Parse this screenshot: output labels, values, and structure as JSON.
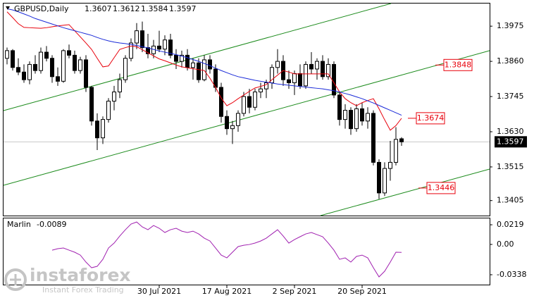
{
  "chart_data": [
    {
      "type": "candlestick",
      "title": "GBPUSD,Daily",
      "categories": [
        null,
        null,
        null,
        null,
        null,
        null,
        null,
        null,
        null,
        null,
        null,
        null,
        null,
        null,
        null,
        null,
        null,
        null,
        null,
        null,
        null,
        null,
        null,
        null,
        null,
        null,
        null,
        "30 Jul 2021",
        null,
        null,
        null,
        null,
        null,
        null,
        null,
        null,
        null,
        null,
        null,
        "17 Aug 2021",
        null,
        null,
        null,
        null,
        null,
        null,
        null,
        null,
        null,
        null,
        null,
        "2 Sep 2021",
        null,
        null,
        null,
        null,
        null,
        null,
        null,
        null,
        null,
        null,
        null,
        "20 Sep 2021",
        null,
        null,
        null,
        null,
        null,
        null,
        null
      ],
      "open": [
        1.387,
        1.3895,
        1.384,
        1.3825,
        1.38,
        1.385,
        1.383,
        1.389,
        1.387,
        1.381,
        1.3795,
        1.3895,
        1.388,
        1.383,
        1.3865,
        1.3775,
        1.3665,
        1.361,
        1.367,
        1.373,
        1.376,
        1.38,
        1.387,
        1.392,
        1.396,
        1.3905,
        1.3885,
        1.391,
        1.39,
        1.393,
        1.388,
        1.386,
        1.388,
        1.384,
        1.3855,
        1.38,
        1.3865,
        1.3835,
        1.3775,
        1.368,
        1.364,
        1.365,
        1.369,
        1.3745,
        1.371,
        1.376,
        1.377,
        1.379,
        1.384,
        1.386,
        1.38,
        1.379,
        1.382,
        1.378,
        1.385,
        1.3835,
        1.386,
        1.381,
        1.385,
        1.375,
        1.367,
        1.37,
        1.364,
        1.3705,
        1.3665,
        1.369,
        1.353,
        1.343,
        1.351,
        1.353,
        1.3607
      ],
      "high": [
        1.3905,
        1.39,
        1.387,
        1.385,
        1.386,
        1.388,
        1.3905,
        1.391,
        1.388,
        1.384,
        1.39,
        1.3915,
        1.3895,
        1.3875,
        1.388,
        1.378,
        1.369,
        1.368,
        1.374,
        1.378,
        1.382,
        1.388,
        1.3935,
        1.3985,
        1.399,
        1.395,
        1.393,
        1.396,
        1.3945,
        1.395,
        1.39,
        1.3895,
        1.39,
        1.387,
        1.387,
        1.388,
        1.388,
        1.385,
        1.379,
        1.37,
        1.3665,
        1.37,
        1.376,
        1.377,
        1.377,
        1.379,
        1.38,
        1.385,
        1.39,
        1.388,
        1.383,
        1.383,
        1.385,
        1.386,
        1.389,
        1.387,
        1.388,
        1.387,
        1.386,
        1.376,
        1.372,
        1.371,
        1.372,
        1.3725,
        1.371,
        1.37,
        1.354,
        1.353,
        1.36,
        1.3645,
        1.3612
      ],
      "low": [
        1.385,
        1.383,
        1.3815,
        1.379,
        1.3785,
        1.382,
        1.382,
        1.386,
        1.379,
        1.378,
        1.379,
        1.387,
        1.382,
        1.382,
        1.376,
        1.365,
        1.357,
        1.359,
        1.366,
        1.37,
        1.374,
        1.379,
        1.386,
        1.39,
        1.389,
        1.387,
        1.387,
        1.389,
        1.388,
        1.387,
        1.3835,
        1.384,
        1.383,
        1.38,
        1.379,
        1.3795,
        1.382,
        1.376,
        1.366,
        1.362,
        1.359,
        1.363,
        1.368,
        1.369,
        1.37,
        1.374,
        1.374,
        1.377,
        1.382,
        1.378,
        1.377,
        1.375,
        1.377,
        1.377,
        1.382,
        1.38,
        1.38,
        1.38,
        1.374,
        1.365,
        1.364,
        1.362,
        1.363,
        1.365,
        1.364,
        1.352,
        1.341,
        1.342,
        1.347,
        1.352,
        1.3584
      ],
      "close": [
        1.3895,
        1.384,
        1.3825,
        1.38,
        1.385,
        1.383,
        1.389,
        1.387,
        1.381,
        1.3795,
        1.3895,
        1.388,
        1.383,
        1.3865,
        1.3775,
        1.3665,
        1.361,
        1.367,
        1.373,
        1.376,
        1.38,
        1.387,
        1.392,
        1.396,
        1.3905,
        1.3885,
        1.391,
        1.39,
        1.393,
        1.388,
        1.386,
        1.388,
        1.384,
        1.3855,
        1.38,
        1.3865,
        1.3835,
        1.3775,
        1.368,
        1.364,
        1.365,
        1.369,
        1.3745,
        1.371,
        1.376,
        1.377,
        1.379,
        1.384,
        1.386,
        1.38,
        1.379,
        1.382,
        1.378,
        1.385,
        1.3835,
        1.386,
        1.381,
        1.385,
        1.375,
        1.367,
        1.37,
        1.364,
        1.3705,
        1.3665,
        1.369,
        1.353,
        1.343,
        1.351,
        1.353,
        1.3605,
        1.3597
      ],
      "overlays": [
        {
          "color": "#e8000b",
          "values": [
            1.4022,
            1.4003,
            1.3983,
            1.3971,
            1.397,
            1.3969,
            1.3968,
            1.397,
            1.3973,
            1.3976,
            1.3978,
            1.398,
            1.396,
            1.394,
            1.392,
            1.3899,
            1.387,
            1.3842,
            1.3845,
            1.3872,
            1.3899,
            1.3905,
            1.391,
            1.3908,
            1.3898,
            1.3888,
            1.3878,
            1.3868,
            1.3862,
            1.3855,
            1.3848,
            1.3842,
            1.3839,
            1.3836,
            1.3833,
            1.383,
            1.3805,
            1.3775,
            1.374,
            1.3715,
            1.3725,
            1.3738,
            1.375,
            1.3762,
            1.3773,
            1.3778,
            1.3784,
            1.38,
            1.3815,
            1.383,
            1.3825,
            1.3819,
            1.3819,
            1.3819,
            1.3819,
            1.3819,
            1.3819,
            1.3819,
            1.379,
            1.376,
            1.3738,
            1.3725,
            1.3715,
            1.3725,
            1.3732,
            1.3738,
            1.3705,
            1.3669,
            1.3635,
            1.365,
            1.3674
          ]
        },
        {
          "color": "#1a2ad8",
          "values": [
            1.4032,
            1.4028,
            1.4022,
            1.4015,
            1.4008,
            1.4,
            1.3994,
            1.3988,
            1.3982,
            1.3976,
            1.397,
            1.3965,
            1.396,
            1.3955,
            1.395,
            1.3945,
            1.3938,
            1.3932,
            1.3927,
            1.3923,
            1.392,
            1.3918,
            1.3915,
            1.3912,
            1.3908,
            1.3904,
            1.3899,
            1.3894,
            1.389,
            1.3886,
            1.3882,
            1.3877,
            1.3872,
            1.3866,
            1.386,
            1.3853,
            1.3846,
            1.3838,
            1.383,
            1.3823,
            1.3816,
            1.381,
            1.3806,
            1.3802,
            1.3798,
            1.3795,
            1.3792,
            1.3789,
            1.3786,
            1.3784,
            1.3782,
            1.378,
            1.3778,
            1.3776,
            1.3774,
            1.3772,
            1.377,
            1.3767,
            1.3764,
            1.376,
            1.3755,
            1.375,
            1.3744,
            1.3738,
            1.3731,
            1.3724,
            1.3716,
            1.3708,
            1.37,
            1.3692,
            1.3684
          ]
        }
      ],
      "trendlines": [
        {
          "x": [
            -0.625,
            68.125
          ],
          "y": [
            1.3699,
            1.4049
          ]
        },
        {
          "x": [
            -0.625,
            85.625
          ],
          "y": [
            1.3455,
            1.3895
          ]
        },
        {
          "x": [
            55.625,
            85.625
          ],
          "y": [
            1.3356,
            1.3508
          ]
        }
      ],
      "trendline_color": "#1e8c1e",
      "price_labels": [
        1.3848,
        1.3674,
        1.3446
      ],
      "price_label_color": "#e8000b",
      "current_price": 1.3597,
      "ylim": [
        1.3356,
        1.4049
      ],
      "yticks": [
        1.3975,
        {
          "value": 1.386,
          "label": "1.3860"
        },
        1.3745,
        {
          "value": 1.363,
          "label": "1.3630"
        },
        1.3515,
        1.3405
      ]
    },
    {
      "type": "line",
      "title": "Marlin",
      "color": "#a020b0",
      "values": [
        null,
        null,
        null,
        null,
        null,
        null,
        null,
        null,
        -0.0064,
        -0.0048,
        -0.004,
        -0.0064,
        -0.0087,
        -0.0119,
        -0.0197,
        -0.026,
        -0.0244,
        -0.0166,
        -0.004,
        0.0015,
        0.0093,
        0.0164,
        0.0227,
        0.025,
        0.0195,
        0.0164,
        0.0211,
        0.018,
        0.0133,
        0.0164,
        0.018,
        0.0148,
        0.0133,
        0.0148,
        0.0117,
        0.007,
        0.0038,
        -0.004,
        -0.0119,
        -0.015,
        -0.0087,
        -0.0024,
        -0.0009,
        -0.0001,
        0.0015,
        0.0038,
        0.007,
        0.0117,
        0.0164,
        0.0093,
        0.0015,
        0.0054,
        0.0086,
        0.0117,
        0.0133,
        0.0109,
        0.0086,
        0.0015,
        -0.0064,
        -0.0166,
        -0.015,
        -0.0197,
        -0.0134,
        -0.0119,
        -0.015,
        -0.026,
        -0.0362,
        -0.0299,
        -0.0197,
        -0.0087,
        -0.0089
      ],
      "ylim": [
        -0.0456,
        0.0298
      ],
      "yticks": [
        0.0219,
        {
          "value": 0,
          "label": "0.00"
        },
        -0.0338
      ]
    }
  ],
  "watermark": {
    "brand": "instaforex",
    "tagline": "Instant Forex Trading"
  }
}
